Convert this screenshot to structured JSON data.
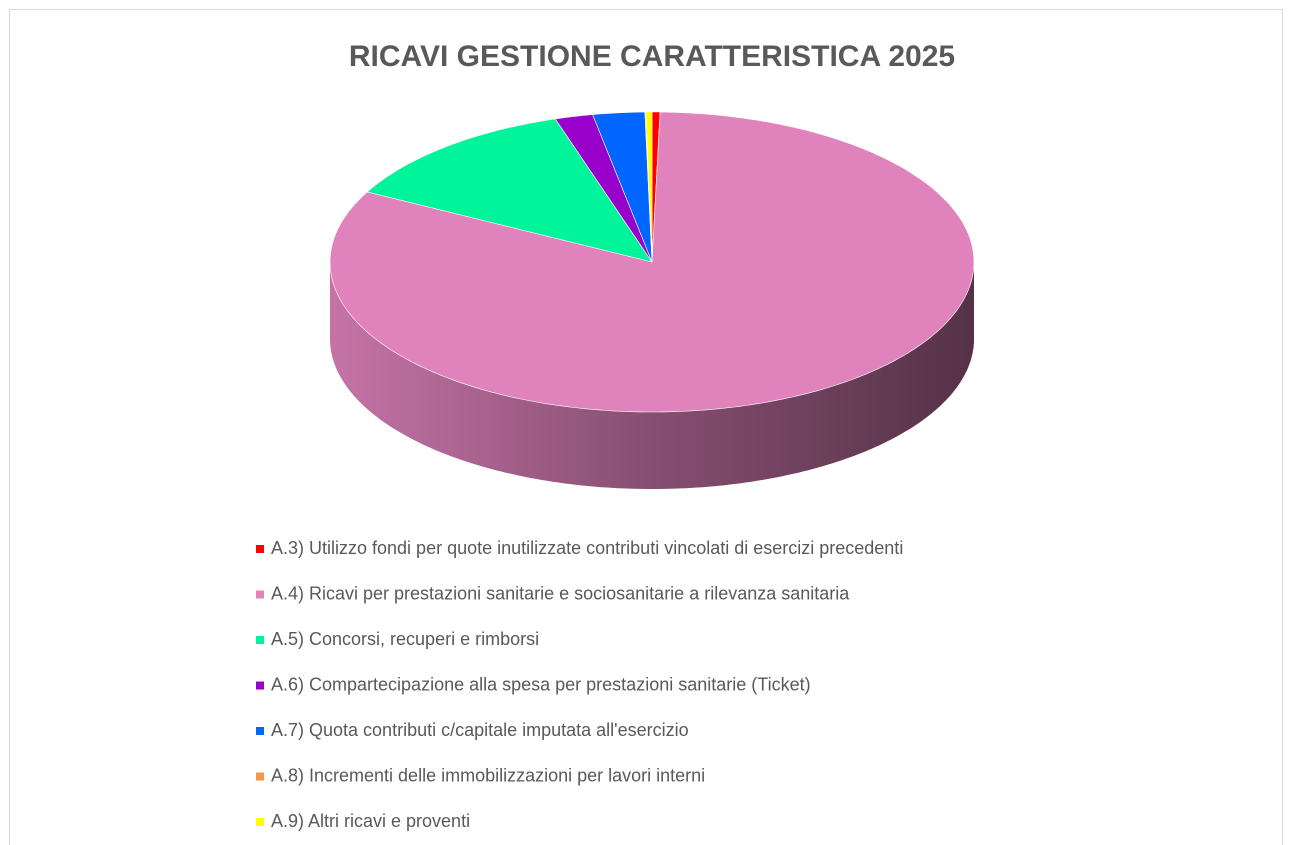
{
  "chart_data": {
    "type": "pie3d",
    "title": "RICAVI GESTIONE CARATTERISTICA 2025",
    "categories": [
      "A.3) Utilizzo fondi per quote inutilizzate contributi vincolati di esercizi precedenti",
      "A.4)  Ricavi per prestazioni sanitarie e sociosanitarie a rilevanza sanitaria",
      "A.5) Concorsi, recuperi e rimborsi",
      "A.6)  Compartecipazione alla spesa per prestazioni sanitarie (Ticket)",
      "A.7)  Quota contributi c/capitale imputata all'esercizio",
      "A.8)  Incrementi delle immobilizzazioni per lavori interni",
      "A.9) Altri ricavi e proventi"
    ],
    "values": [
      0.4,
      82.3,
      12.4,
      1.9,
      2.6,
      0.05,
      0.3
    ],
    "colors": [
      "#ff0000",
      "#e083bd",
      "#00f59a",
      "#9900cc",
      "#0066ff",
      "#f79646",
      "#ffff00"
    ],
    "legend": "bottom"
  }
}
